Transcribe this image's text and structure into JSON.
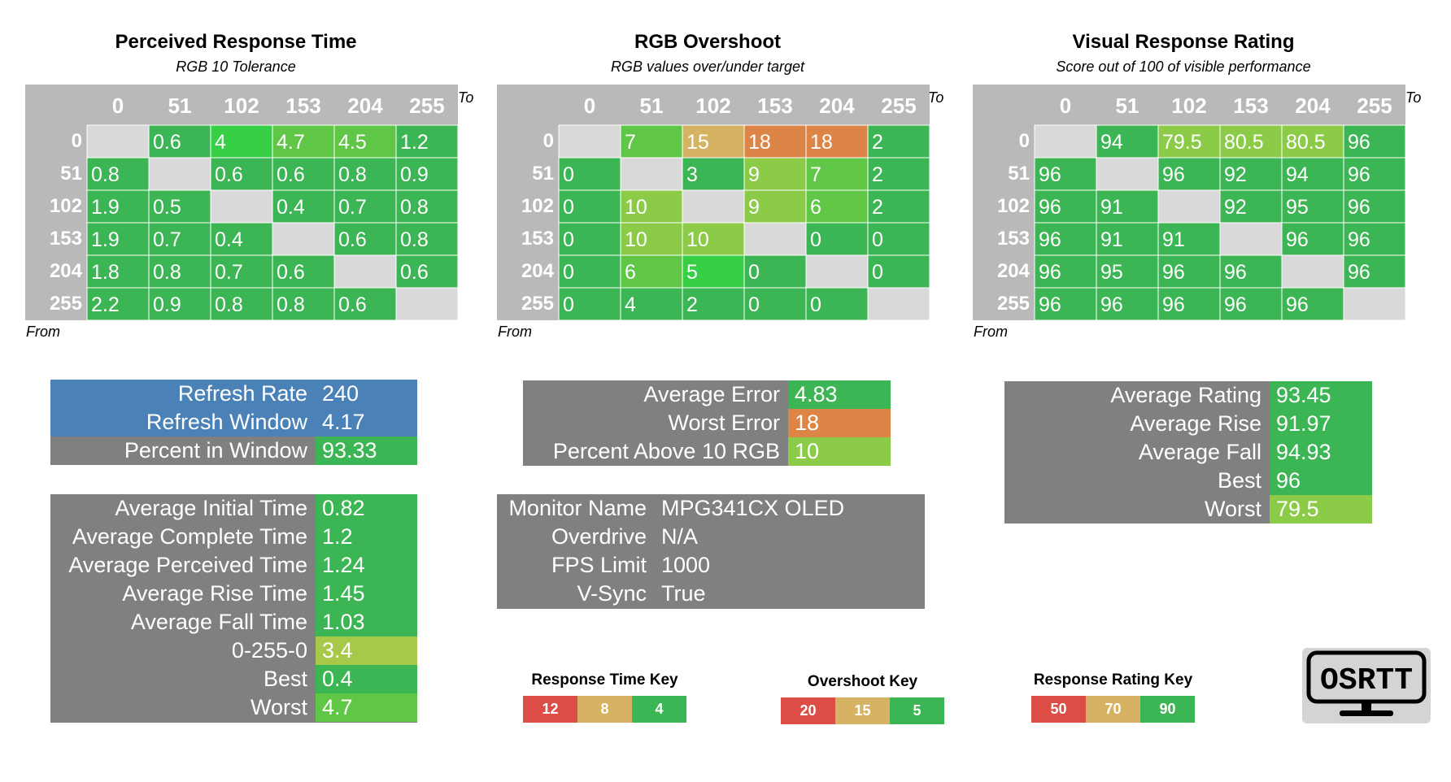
{
  "colors": {
    "green": "#3cb554",
    "bright_green": "#37cf46",
    "light_green": "#60c646",
    "yellow_green": "#8ccb48",
    "lime": "#a8c849",
    "tan": "#d6b362",
    "orange": "#dc8547",
    "red": "#dc4e45",
    "gray": "#808080",
    "header_gray": "#b9b9b9",
    "blank_cell": "#d9d9d9",
    "blue": "#4a81b7"
  },
  "chart_data": [
    {
      "type": "heatmap",
      "title": "Perceived Response Time",
      "subtitle": "RGB 10 Tolerance",
      "xlabel": "To",
      "ylabel": "From",
      "x": [
        "0",
        "51",
        "102",
        "153",
        "204",
        "255"
      ],
      "y": [
        "0",
        "51",
        "102",
        "153",
        "204",
        "255"
      ],
      "values": [
        [
          "",
          "0.6",
          "4",
          "4.7",
          "4.5",
          "1.2"
        ],
        [
          "0.8",
          "",
          "0.6",
          "0.6",
          "0.8",
          "0.9"
        ],
        [
          "1.9",
          "0.5",
          "",
          "0.4",
          "0.7",
          "0.8"
        ],
        [
          "1.9",
          "0.7",
          "0.4",
          "",
          "0.6",
          "0.8"
        ],
        [
          "1.8",
          "0.8",
          "0.7",
          "0.6",
          "",
          "0.6"
        ],
        [
          "2.2",
          "0.9",
          "0.8",
          "0.8",
          "0.6",
          ""
        ]
      ],
      "cell_colors": [
        [
          "blank_cell",
          "green",
          "bright_green",
          "light_green",
          "light_green",
          "green"
        ],
        [
          "green",
          "blank_cell",
          "green",
          "green",
          "green",
          "green"
        ],
        [
          "green",
          "green",
          "blank_cell",
          "green",
          "green",
          "green"
        ],
        [
          "green",
          "green",
          "green",
          "blank_cell",
          "green",
          "green"
        ],
        [
          "green",
          "green",
          "green",
          "green",
          "blank_cell",
          "green"
        ],
        [
          "green",
          "green",
          "green",
          "green",
          "green",
          "blank_cell"
        ]
      ]
    },
    {
      "type": "heatmap",
      "title": "RGB Overshoot",
      "subtitle": "RGB values over/under target",
      "xlabel": "To",
      "ylabel": "From",
      "x": [
        "0",
        "51",
        "102",
        "153",
        "204",
        "255"
      ],
      "y": [
        "0",
        "51",
        "102",
        "153",
        "204",
        "255"
      ],
      "values": [
        [
          "",
          "7",
          "15",
          "18",
          "18",
          "2"
        ],
        [
          "0",
          "",
          "3",
          "9",
          "7",
          "2"
        ],
        [
          "0",
          "10",
          "",
          "9",
          "6",
          "2"
        ],
        [
          "0",
          "10",
          "10",
          "",
          "0",
          "0"
        ],
        [
          "0",
          "6",
          "5",
          "0",
          "",
          "0"
        ],
        [
          "0",
          "4",
          "2",
          "0",
          "0",
          ""
        ]
      ],
      "cell_colors": [
        [
          "blank_cell",
          "light_green",
          "tan",
          "orange",
          "orange",
          "green"
        ],
        [
          "green",
          "blank_cell",
          "green",
          "yellow_green",
          "light_green",
          "green"
        ],
        [
          "green",
          "yellow_green",
          "blank_cell",
          "yellow_green",
          "light_green",
          "green"
        ],
        [
          "green",
          "yellow_green",
          "yellow_green",
          "blank_cell",
          "green",
          "green"
        ],
        [
          "green",
          "light_green",
          "bright_green",
          "green",
          "blank_cell",
          "green"
        ],
        [
          "green",
          "green",
          "green",
          "green",
          "green",
          "blank_cell"
        ]
      ]
    },
    {
      "type": "heatmap",
      "title": "Visual Response Rating",
      "subtitle": "Score out of 100 of visible performance",
      "xlabel": "To",
      "ylabel": "From",
      "x": [
        "0",
        "51",
        "102",
        "153",
        "204",
        "255"
      ],
      "y": [
        "0",
        "51",
        "102",
        "153",
        "204",
        "255"
      ],
      "values": [
        [
          "",
          "94",
          "79.5",
          "80.5",
          "80.5",
          "96"
        ],
        [
          "96",
          "",
          "96",
          "92",
          "94",
          "96"
        ],
        [
          "96",
          "91",
          "",
          "92",
          "95",
          "96"
        ],
        [
          "96",
          "91",
          "91",
          "",
          "96",
          "96"
        ],
        [
          "96",
          "95",
          "96",
          "96",
          "",
          "96"
        ],
        [
          "96",
          "96",
          "96",
          "96",
          "96",
          ""
        ]
      ],
      "cell_colors": [
        [
          "blank_cell",
          "green",
          "yellow_green",
          "yellow_green",
          "yellow_green",
          "green"
        ],
        [
          "green",
          "blank_cell",
          "green",
          "green",
          "green",
          "green"
        ],
        [
          "green",
          "green",
          "blank_cell",
          "green",
          "green",
          "green"
        ],
        [
          "green",
          "green",
          "green",
          "blank_cell",
          "green",
          "green"
        ],
        [
          "green",
          "green",
          "green",
          "green",
          "blank_cell",
          "green"
        ],
        [
          "green",
          "green",
          "green",
          "green",
          "green",
          "blank_cell"
        ]
      ]
    }
  ],
  "panels": {
    "refresh": [
      {
        "label": "Refresh Rate",
        "value": "240",
        "label_color": "blue",
        "value_color": "blue"
      },
      {
        "label": "Refresh Window",
        "value": "4.17",
        "label_color": "blue",
        "value_color": "blue"
      },
      {
        "label": "Percent in Window",
        "value": "93.33",
        "label_color": "gray",
        "value_color": "green"
      }
    ],
    "times": [
      {
        "label": "Average Initial Time",
        "value": "0.82",
        "value_color": "green"
      },
      {
        "label": "Average Complete Time",
        "value": "1.2",
        "value_color": "green"
      },
      {
        "label": "Average Perceived Time",
        "value": "1.24",
        "value_color": "green"
      },
      {
        "label": "Average Rise Time",
        "value": "1.45",
        "value_color": "green"
      },
      {
        "label": "Average Fall Time",
        "value": "1.03",
        "value_color": "green"
      },
      {
        "label": "0-255-0",
        "value": "3.4",
        "value_color": "lime"
      },
      {
        "label": "Best",
        "value": "0.4",
        "value_color": "green"
      },
      {
        "label": "Worst",
        "value": "4.7",
        "value_color": "light_green"
      }
    ],
    "overshoot": [
      {
        "label": "Average Error",
        "value": "4.83",
        "value_color": "green"
      },
      {
        "label": "Worst Error",
        "value": "18",
        "value_color": "orange"
      },
      {
        "label": "Percent Above 10 RGB",
        "value": "10",
        "value_color": "yellow_green"
      }
    ],
    "monitor": [
      {
        "label": "Monitor Name",
        "value": "MPG341CX OLED"
      },
      {
        "label": "Overdrive",
        "value": "N/A"
      },
      {
        "label": "FPS Limit",
        "value": "1000"
      },
      {
        "label": "V-Sync",
        "value": "True"
      }
    ],
    "rating": [
      {
        "label": "Average Rating",
        "value": "93.45",
        "value_color": "green"
      },
      {
        "label": "Average Rise",
        "value": "91.97",
        "value_color": "green"
      },
      {
        "label": "Average Fall",
        "value": "94.93",
        "value_color": "green"
      },
      {
        "label": "Best",
        "value": "96",
        "value_color": "green"
      },
      {
        "label": "Worst",
        "value": "79.5",
        "value_color": "yellow_green"
      }
    ]
  },
  "keys": {
    "response_time": {
      "title": "Response Time Key",
      "values": [
        "12",
        "8",
        "4"
      ],
      "colors": [
        "red",
        "tan",
        "green"
      ]
    },
    "overshoot": {
      "title": "Overshoot Key",
      "values": [
        "20",
        "15",
        "5"
      ],
      "colors": [
        "red",
        "tan",
        "green"
      ]
    },
    "rating": {
      "title": "Response Rating Key",
      "values": [
        "50",
        "70",
        "90"
      ],
      "colors": [
        "red",
        "tan",
        "green"
      ]
    }
  },
  "logo": {
    "text": "OSRTT"
  }
}
